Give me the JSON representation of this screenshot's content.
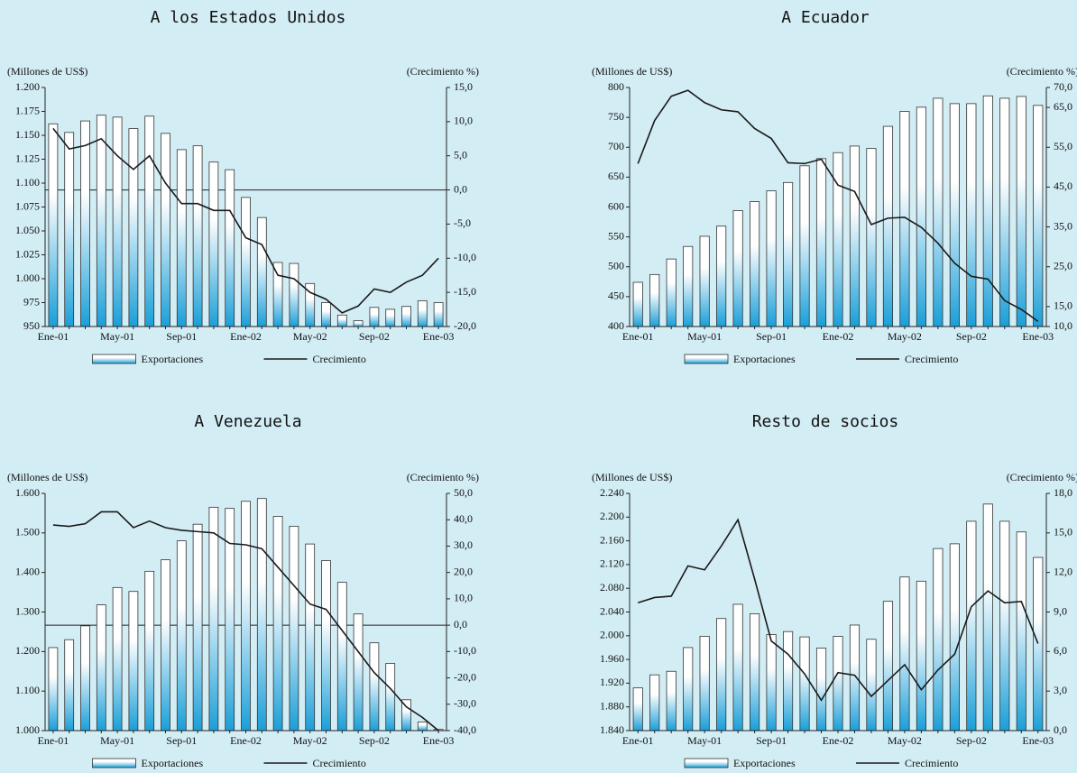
{
  "chart_data": [
    {
      "type": "bar",
      "title": "A los Estados Unidos",
      "ylabel": "(Millones de US$)",
      "y2label": "(Crecimiento %)",
      "categories": [
        "Ene-01",
        null,
        null,
        null,
        "May-01",
        null,
        null,
        null,
        "Sep-01",
        null,
        null,
        null,
        "Ene-02",
        null,
        null,
        null,
        "May-02",
        null,
        null,
        null,
        "Sep-02",
        null,
        null,
        null,
        "Ene-03"
      ],
      "series": [
        {
          "name": "Exportaciones",
          "type": "bar",
          "color": "#1a9fd8",
          "values": [
            1162,
            1153,
            1165,
            1171,
            1169,
            1157,
            1170,
            1152,
            1135,
            1139,
            1122,
            1114,
            1085,
            1064,
            1017,
            1016,
            995,
            975,
            962,
            956,
            970,
            968,
            971,
            977,
            975
          ]
        },
        {
          "name": "Crecimiento",
          "type": "line",
          "axis": "y2",
          "color": "#1a1a1a",
          "values": [
            9,
            6,
            6.5,
            7.5,
            5,
            3,
            5,
            1,
            -2,
            -2,
            -3,
            -3,
            -7,
            -8,
            -12.5,
            -13,
            -15,
            -16,
            -18,
            -17,
            -14.5,
            -15,
            -13.5,
            -12.5,
            -10
          ]
        }
      ],
      "ylim": [
        950,
        1200
      ],
      "yticks": [
        950,
        975,
        {
          "value": 1000,
          "label": "1.000"
        },
        {
          "value": 1025,
          "label": "1.025"
        },
        {
          "value": 1050,
          "label": "1.050"
        },
        {
          "value": 1075,
          "label": "1.075"
        },
        {
          "value": 1100,
          "label": "1.100"
        },
        {
          "value": 1125,
          "label": "1.125"
        },
        {
          "value": 1150,
          "label": "1.150"
        },
        {
          "value": 1175,
          "label": "1.175"
        },
        {
          "value": 1200,
          "label": "1.200"
        }
      ],
      "y2lim": [
        -20,
        15
      ],
      "y2ticks": [
        {
          "value": -20,
          "label": "-20,0"
        },
        {
          "value": -15,
          "label": "-15,0"
        },
        {
          "value": -10,
          "label": "-10,0"
        },
        {
          "value": -5,
          "label": "-5,0"
        },
        {
          "value": 0,
          "label": "0,0"
        },
        {
          "value": 5,
          "label": "5,0"
        },
        {
          "value": 10,
          "label": "10,0"
        },
        {
          "value": 15,
          "label": "15,0"
        }
      ],
      "y2_zero_line": true,
      "legend": "bottom"
    },
    {
      "type": "bar",
      "title": "A Ecuador",
      "ylabel": "(Millones de US$)",
      "y2label": "(Crecimiento %)",
      "categories": [
        "Ene-01",
        null,
        null,
        null,
        "May-01",
        null,
        null,
        null,
        "Sep-01",
        null,
        null,
        null,
        "Ene-02",
        null,
        null,
        null,
        "May-02",
        null,
        null,
        null,
        "Sep-02",
        null,
        null,
        null,
        "Ene-03"
      ],
      "series": [
        {
          "name": "Exportaciones",
          "type": "bar",
          "color": "#1a9fd8",
          "values": [
            474,
            487,
            513,
            534,
            551,
            568,
            594,
            609,
            627,
            641,
            669,
            681,
            691,
            702,
            698,
            735,
            760,
            767,
            782,
            773,
            773,
            786,
            782,
            785,
            770
          ]
        },
        {
          "name": "Crecimiento",
          "type": "line",
          "axis": "y2",
          "color": "#1a1a1a",
          "values": [
            50.9,
            61.7,
            67.8,
            69.3,
            66.2,
            64.4,
            63.9,
            59.7,
            57.2,
            51.1,
            50.9,
            52,
            45.5,
            43.9,
            35.6,
            37.2,
            37.4,
            34.9,
            30.9,
            25.9,
            22.6,
            21.9,
            16.5,
            14.3,
            11.3
          ]
        }
      ],
      "ylim": [
        400,
        800
      ],
      "yticks": [
        400,
        450,
        500,
        550,
        600,
        650,
        700,
        750,
        800
      ],
      "y2lim": [
        10,
        70
      ],
      "y2ticks": [
        {
          "value": 10,
          "label": "10,0"
        },
        {
          "value": 15,
          "label": "15,0"
        },
        {
          "value": 25,
          "label": "25,0"
        },
        {
          "value": 35,
          "label": "35,0"
        },
        {
          "value": 45,
          "label": "45,0"
        },
        {
          "value": 55,
          "label": "55,0"
        },
        {
          "value": 65,
          "label": "65,0"
        },
        {
          "value": 70,
          "label": "70,0"
        }
      ],
      "y2_zero_line": false,
      "legend": "bottom"
    },
    {
      "type": "bar",
      "title": "A Venezuela",
      "ylabel": "(Millones de US$)",
      "y2label": "(Crecimiento %)",
      "categories": [
        "Ene-01",
        null,
        null,
        null,
        "May-01",
        null,
        null,
        null,
        "Sep-01",
        null,
        null,
        null,
        "Ene-02",
        null,
        null,
        null,
        "May-02",
        null,
        null,
        null,
        "Sep-02",
        null,
        null,
        null,
        "Ene-03"
      ],
      "series": [
        {
          "name": "Exportaciones",
          "type": "bar",
          "color": "#1a9fd8",
          "values": [
            1210,
            1230,
            1265,
            1318,
            1362,
            1352,
            1403,
            1432,
            1480,
            1522,
            1565,
            1562,
            1580,
            1587,
            1542,
            1517,
            1472,
            1430,
            1375,
            1295,
            1222,
            1170,
            1078,
            1022,
            1003
          ]
        },
        {
          "name": "Crecimiento",
          "type": "line",
          "axis": "y2",
          "color": "#1a1a1a",
          "values": [
            38,
            37.5,
            38.5,
            43,
            43,
            37,
            39.5,
            37,
            36,
            35.5,
            35,
            31,
            30.5,
            29,
            22,
            15,
            8,
            6,
            -2,
            -10,
            -18,
            -24,
            -31,
            -35,
            -40
          ]
        }
      ],
      "ylim": [
        1000,
        1600
      ],
      "yticks": [
        {
          "value": 1000,
          "label": "1.000"
        },
        {
          "value": 1100,
          "label": "1.100"
        },
        {
          "value": 1200,
          "label": "1.200"
        },
        {
          "value": 1300,
          "label": "1.300"
        },
        {
          "value": 1400,
          "label": "1.400"
        },
        {
          "value": 1500,
          "label": "1.500"
        },
        {
          "value": 1600,
          "label": "1.600"
        }
      ],
      "y2lim": [
        -40,
        50
      ],
      "y2ticks": [
        {
          "value": -40,
          "label": "-40,0"
        },
        {
          "value": -30,
          "label": "-30,0"
        },
        {
          "value": -20,
          "label": "-20,0"
        },
        {
          "value": -10,
          "label": "-10,0"
        },
        {
          "value": 0,
          "label": "0,0"
        },
        {
          "value": 10,
          "label": "10,0"
        },
        {
          "value": 20,
          "label": "20,0"
        },
        {
          "value": 30,
          "label": "30,0"
        },
        {
          "value": 40,
          "label": "40,0"
        },
        {
          "value": 50,
          "label": "50,0"
        }
      ],
      "y2_zero_line": true,
      "legend": "bottom"
    },
    {
      "type": "bar",
      "title": "Resto de socios",
      "ylabel": "(Millones de US$)",
      "y2label": "(Crecimiento %)",
      "categories": [
        "Ene-01",
        null,
        null,
        null,
        "May-01",
        null,
        null,
        null,
        "Sep-01",
        null,
        null,
        null,
        "Ene-02",
        null,
        null,
        null,
        "May-02",
        null,
        null,
        null,
        "Sep-02",
        null,
        null,
        null,
        "Ene-03"
      ],
      "series": [
        {
          "name": "Exportaciones",
          "type": "bar",
          "color": "#1a9fd8",
          "values": [
            1912,
            1934,
            1940,
            1980,
            1999,
            2029,
            2053,
            2037,
            2002,
            2007,
            1998,
            1979,
            1999,
            2018,
            1994,
            2058,
            2099,
            2092,
            2147,
            2155,
            2193,
            2222,
            2193,
            2175,
            2132
          ]
        },
        {
          "name": "Crecimiento",
          "type": "line",
          "axis": "y2",
          "color": "#1a1a1a",
          "values": [
            9.7,
            10.1,
            10.2,
            12.5,
            12.2,
            14,
            16,
            11.5,
            6.8,
            5.8,
            4.3,
            2.3,
            4.4,
            4.2,
            2.6,
            3.8,
            5,
            3.1,
            4.6,
            5.8,
            9.4,
            10.6,
            9.7,
            9.8,
            6.6
          ]
        }
      ],
      "ylim": [
        1840,
        2240
      ],
      "yticks": [
        {
          "value": 1840,
          "label": "1.840"
        },
        {
          "value": 1880,
          "label": "1.880"
        },
        {
          "value": 1920,
          "label": "1.920"
        },
        {
          "value": 1960,
          "label": "1.960"
        },
        {
          "value": 2000,
          "label": "2.000"
        },
        {
          "value": 2040,
          "label": "2.040"
        },
        {
          "value": 2080,
          "label": "2.080"
        },
        {
          "value": 2120,
          "label": "2.120"
        },
        {
          "value": 2160,
          "label": "2.160"
        },
        {
          "value": 2200,
          "label": "2.200"
        },
        {
          "value": 2240,
          "label": "2.240"
        }
      ],
      "y2lim": [
        0,
        18
      ],
      "y2ticks": [
        {
          "value": 0,
          "label": "0,0"
        },
        {
          "value": 3,
          "label": "3,0"
        },
        {
          "value": 6,
          "label": "6,0"
        },
        {
          "value": 9,
          "label": "9,0"
        },
        {
          "value": 12,
          "label": "12,0"
        },
        {
          "value": 15,
          "label": "15,0"
        },
        {
          "value": 18,
          "label": "18,0"
        }
      ],
      "y2_zero_line": false,
      "legend": "bottom"
    }
  ]
}
